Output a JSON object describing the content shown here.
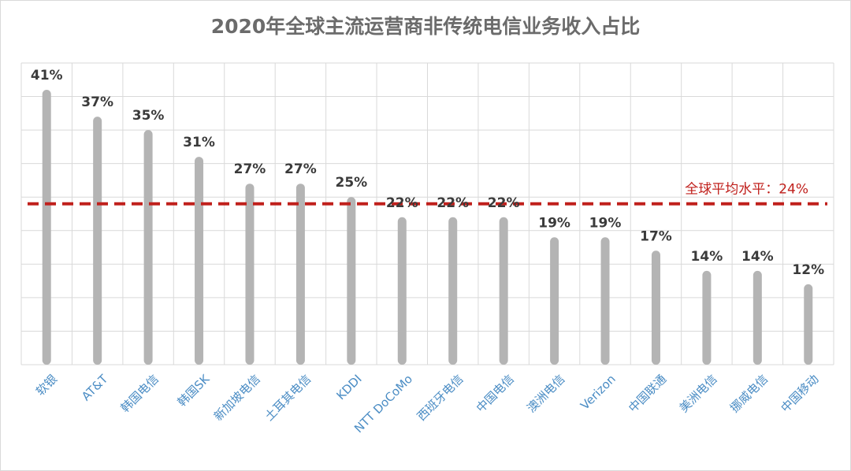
{
  "chart_data": {
    "type": "bar",
    "title": "2020年全球主流运营商非传统电信业务收入占比",
    "categories": [
      "软银",
      "AT&T",
      "韩国电信",
      "韩国SK",
      "新加坡电信",
      "土耳其电信",
      "KDDI",
      "NTT DoCoMo",
      "西班牙电信",
      "中国电信",
      "澳洲电信",
      "Verizon",
      "中国联通",
      "美洲电信",
      "挪威电信",
      "中国移动"
    ],
    "values": [
      41,
      37,
      35,
      31,
      27,
      27,
      25,
      22,
      22,
      22,
      19,
      19,
      17,
      14,
      14,
      12
    ],
    "value_labels": [
      "41%",
      "37%",
      "35%",
      "31%",
      "27%",
      "27%",
      "25%",
      "22%",
      "22%",
      "22%",
      "19%",
      "19%",
      "17%",
      "14%",
      "14%",
      "12%"
    ],
    "ylim": [
      0,
      45
    ],
    "grid": true,
    "bar_color": "#b4b4b4",
    "reference_line": {
      "value": 24,
      "label": "全球平均水平：24%",
      "color": "#c0201c",
      "style": "dashed"
    }
  }
}
